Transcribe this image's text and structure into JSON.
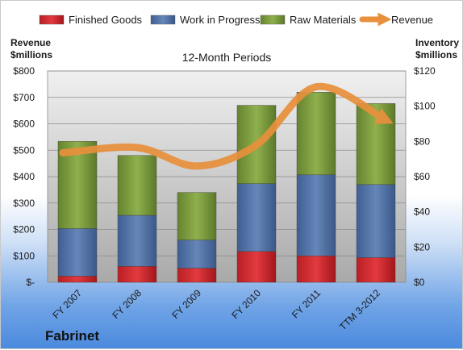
{
  "chart_data": {
    "type": "bar",
    "title": "12-Month Periods",
    "company": "Fabrinet",
    "left_axis_header": [
      "Revenue",
      "$millions"
    ],
    "right_axis_header": [
      "Inventory",
      "$millions"
    ],
    "categories": [
      "FY 2007",
      "FY 2008",
      "FY 2009",
      "FY 2010",
      "FY 2011",
      "TTM 3-2012"
    ],
    "left_axis": {
      "ylim": [
        0,
        800
      ],
      "ticks": [
        "$-",
        "$100",
        "$200",
        "$300",
        "$400",
        "$500",
        "$600",
        "$700",
        "$800"
      ]
    },
    "right_axis": {
      "ylim": [
        0,
        120
      ],
      "ticks": [
        "$0",
        "$20",
        "$40",
        "$60",
        "$80",
        "$100",
        "$120"
      ]
    },
    "series": [
      {
        "name": "Finished Goods",
        "axis": "right",
        "kind": "stacked-bar",
        "color": "#c0272d",
        "values": [
          3.5,
          9,
          8,
          17.5,
          15,
          14
        ]
      },
      {
        "name": "Work in Progress",
        "axis": "right",
        "kind": "stacked-bar",
        "color": "#4f6fa0",
        "values": [
          27,
          29,
          16,
          38.5,
          46,
          41.5
        ]
      },
      {
        "name": "Raw Materials",
        "axis": "right",
        "kind": "stacked-bar",
        "color": "#77933c",
        "values": [
          49.5,
          34,
          27,
          44.5,
          47,
          46
        ]
      },
      {
        "name": "Revenue",
        "axis": "left",
        "kind": "line",
        "color": "#e8903c",
        "values": [
          490,
          510,
          440,
          520,
          740,
          615
        ]
      }
    ],
    "grid": true,
    "legend": "top"
  }
}
